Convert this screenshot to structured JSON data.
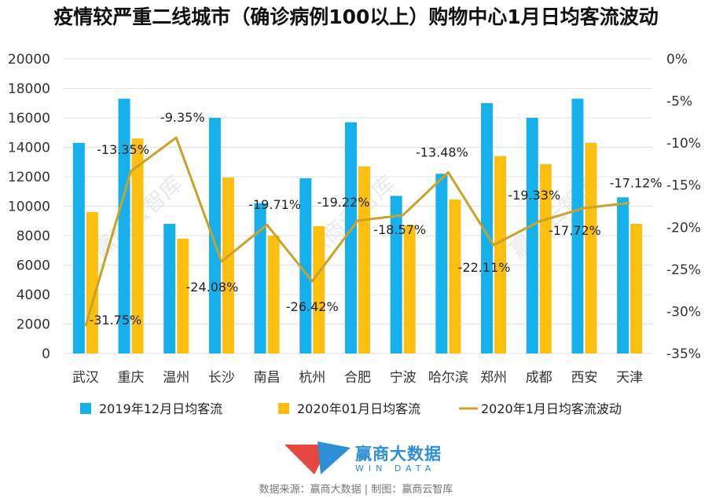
{
  "chart_data": {
    "type": "bar",
    "title": "疫情较严重二线城市（确诊病例100以上）购物中心1月日均客流波动",
    "categories": [
      "武汉",
      "重庆",
      "温州",
      "长沙",
      "南昌",
      "杭州",
      "合肥",
      "宁波",
      "哈尔滨",
      "郑州",
      "成都",
      "西安",
      "天津"
    ],
    "series": [
      {
        "name": "2019年12月日均客流",
        "axis": "left",
        "color": "#16b0ec",
        "values": [
          14300,
          17300,
          8800,
          16000,
          10200,
          11900,
          15700,
          10700,
          12200,
          17000,
          16000,
          17300,
          10600
        ]
      },
      {
        "name": "2020年01月日均客流",
        "axis": "left",
        "color": "#fdbf0f",
        "values": [
          9600,
          14600,
          7800,
          11950,
          8000,
          8650,
          12700,
          8700,
          10450,
          13400,
          12850,
          14300,
          8800
        ]
      },
      {
        "name": "2020年1月日均客流波动",
        "axis": "right",
        "type": "line",
        "color": "#c9a227",
        "values": [
          -31.75,
          -13.35,
          -9.35,
          -24.08,
          -19.71,
          -26.42,
          -19.22,
          -18.57,
          -13.48,
          -22.11,
          -19.33,
          -17.72,
          -17.12
        ],
        "labels": [
          "-31.75%",
          "-13.35%",
          "-9.35%",
          "-24.08%",
          "-19.71%",
          "-26.42%",
          "-19.22%",
          "-18.57%",
          "-13.48%",
          "-22.11%",
          "-19.33%",
          "-17.72%",
          "-17.12%"
        ]
      }
    ],
    "y_left": {
      "min": 0,
      "max": 20000,
      "ticks": [
        "20000",
        "18000",
        "16000",
        "14000",
        "12000",
        "10000",
        "8000",
        "6000",
        "4000",
        "2000",
        "0"
      ]
    },
    "y_right": {
      "min": -35,
      "max": 0,
      "ticks": [
        "0%",
        "-5%",
        "-10%",
        "-15%",
        "-20%",
        "-25%",
        "-30%",
        "-35%"
      ]
    },
    "grid": true,
    "legend_position": "bottom"
  },
  "watermark": "赢商云智库",
  "logo": {
    "name": "赢商大数据",
    "sub": "WIN DATA",
    "colors": [
      "#e8473f",
      "#2d8fd6"
    ]
  },
  "source": "数据来源：赢商大数据 | 制图：赢商云智库"
}
